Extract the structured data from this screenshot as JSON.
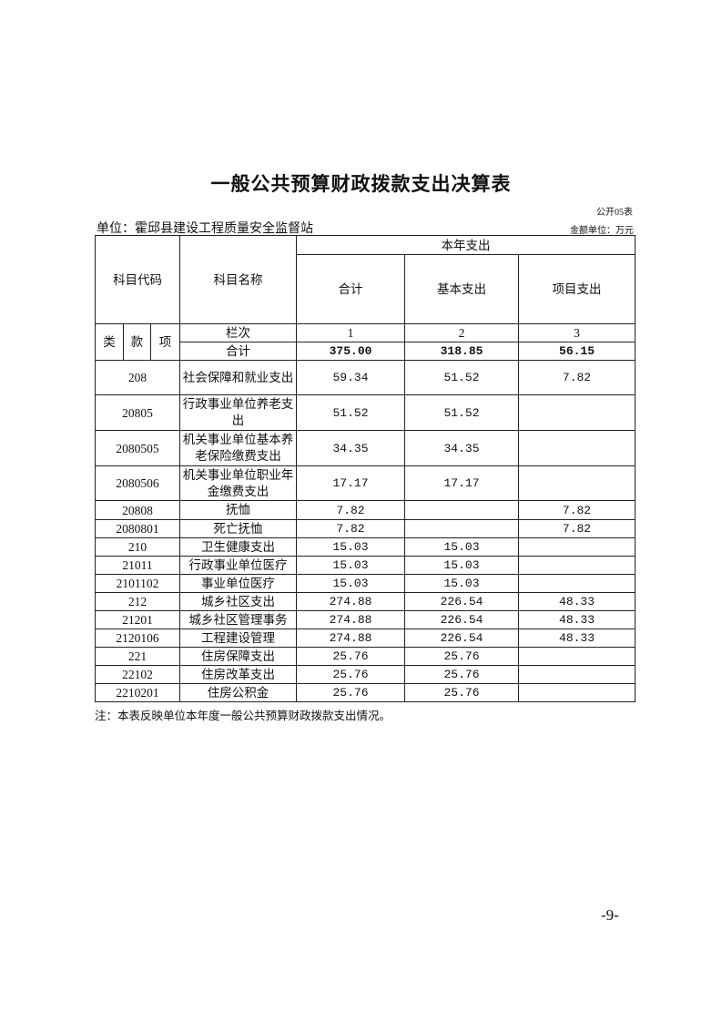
{
  "title": "一般公共预算财政拨款支出决算表",
  "form_no": "公开05表",
  "unit_label": "单位：霍邱县建设工程质量安全监督站",
  "amount_unit": "金额单位：万元",
  "header": {
    "code": "科目代码",
    "name": "科目名称",
    "group": "本年支出",
    "total": "合计",
    "basic": "基本支出",
    "project": "项目支出",
    "lei": "类",
    "kuan": "款",
    "xiang": "项",
    "column_no_label": "栏次",
    "col1": "1",
    "col2": "2",
    "col3": "3",
    "sum_label": "合计",
    "sum_total": "375.00",
    "sum_basic": "318.85",
    "sum_project": "56.15"
  },
  "rows": [
    {
      "code": "208",
      "name": "社会保障和就业支出",
      "total": "59.34",
      "basic": "51.52",
      "project": "7.82"
    },
    {
      "code": "20805",
      "name": "行政事业单位养老支出",
      "total": "51.52",
      "basic": "51.52",
      "project": ""
    },
    {
      "code": "2080505",
      "name": "机关事业单位基本养老保险缴费支出",
      "total": "34.35",
      "basic": "34.35",
      "project": ""
    },
    {
      "code": "2080506",
      "name": "机关事业单位职业年金缴费支出",
      "total": "17.17",
      "basic": "17.17",
      "project": ""
    },
    {
      "code": "20808",
      "name": "抚恤",
      "total": "7.82",
      "basic": "",
      "project": "7.82"
    },
    {
      "code": "2080801",
      "name": "死亡抚恤",
      "total": "7.82",
      "basic": "",
      "project": "7.82"
    },
    {
      "code": "210",
      "name": "卫生健康支出",
      "total": "15.03",
      "basic": "15.03",
      "project": ""
    },
    {
      "code": "21011",
      "name": "行政事业单位医疗",
      "total": "15.03",
      "basic": "15.03",
      "project": ""
    },
    {
      "code": "2101102",
      "name": "事业单位医疗",
      "total": "15.03",
      "basic": "15.03",
      "project": ""
    },
    {
      "code": "212",
      "name": "城乡社区支出",
      "total": "274.88",
      "basic": "226.54",
      "project": "48.33"
    },
    {
      "code": "21201",
      "name": "城乡社区管理事务",
      "total": "274.88",
      "basic": "226.54",
      "project": "48.33"
    },
    {
      "code": "2120106",
      "name": "工程建设管理",
      "total": "274.88",
      "basic": "226.54",
      "project": "48.33"
    },
    {
      "code": "221",
      "name": "住房保障支出",
      "total": "25.76",
      "basic": "25.76",
      "project": ""
    },
    {
      "code": "22102",
      "name": "住房改革支出",
      "total": "25.76",
      "basic": "25.76",
      "project": ""
    },
    {
      "code": "2210201",
      "name": "住房公积金",
      "total": "25.76",
      "basic": "25.76",
      "project": ""
    }
  ],
  "note": "注：本表反映单位本年度一般公共预算财政拨款支出情况。",
  "page_number": "-9-"
}
